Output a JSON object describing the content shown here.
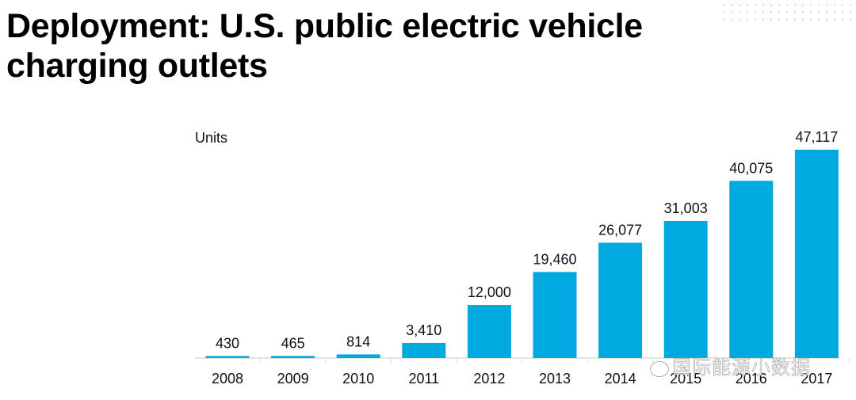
{
  "chart_data": {
    "type": "bar",
    "title": "Deployment: U.S. public electric vehicle charging outlets",
    "ylabel": "Units",
    "xlabel": "",
    "categories": [
      "2008",
      "2009",
      "2010",
      "2011",
      "2012",
      "2013",
      "2014",
      "2015",
      "2016",
      "2017"
    ],
    "values": [
      430,
      465,
      814,
      3410,
      12000,
      19460,
      26077,
      31003,
      40075,
      47117
    ],
    "data_labels": [
      "430",
      "465",
      "814",
      "3,410",
      "12,000",
      "19,460",
      "26,077",
      "31,003",
      "40,075",
      "47,117"
    ],
    "ylim": [
      0,
      47117
    ],
    "grid": false,
    "bar_color": "#00a9e0",
    "axis_color": "#d9d9d9"
  },
  "watermark": "国际能源小数据"
}
